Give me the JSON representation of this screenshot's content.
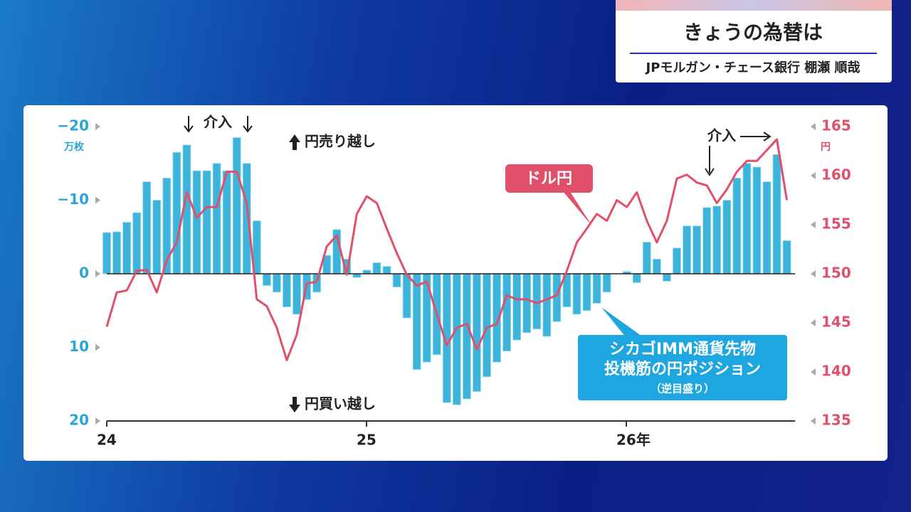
{
  "header": {
    "title": "きょうの為替は",
    "subtitle": "JPモルガン・チェース銀行 棚瀬 順哉"
  },
  "chart_data": {
    "type": "combo",
    "y_unit": "万枚",
    "y2_unit": "円",
    "annotations": [
      "介入",
      "介入",
      "円売り越し",
      "円買い越し",
      "シカゴIMM通貨先物",
      "（逆目盛り）"
    ],
    "x": [
      24,
      24.0385,
      24.077,
      24.1155,
      24.154,
      24.1925,
      24.231,
      24.2695,
      24.308,
      24.3465,
      24.385,
      24.4235,
      24.462,
      24.5005,
      24.539,
      24.5775,
      24.616,
      24.6545,
      24.693,
      24.7315,
      24.77,
      24.8085,
      24.847,
      24.8855,
      24.924,
      24.9625,
      25.001,
      25.0395,
      25.078,
      25.1165,
      25.155,
      25.1935,
      25.232,
      25.2705,
      25.309,
      25.3475,
      25.386,
      25.4245,
      25.463,
      25.5015,
      25.54,
      25.5785,
      25.617,
      25.6555,
      25.694,
      25.7325,
      25.771,
      25.8095,
      25.848,
      25.8865,
      25.925,
      25.9635,
      26.002,
      26.0405,
      26.079,
      26.1175,
      26.156,
      26.1945,
      26.233,
      26.2715,
      26.31,
      26.3485,
      26.387,
      26.4255,
      26.464,
      26.5025,
      26.541,
      26.5795,
      26.618
    ],
    "xlim": [
      24,
      26.65
    ],
    "xticks": [
      24,
      25,
      {
        "value": 26,
        "label": "26年"
      }
    ],
    "ylim": [
      20,
      -20
    ],
    "yticks": [
      {
        "value": -20,
        "label": "−20"
      },
      {
        "value": -10,
        "label": "−10"
      },
      0,
      10,
      20
    ],
    "y2lim": [
      135,
      165
    ],
    "y2ticks": [
      135,
      140,
      145,
      150,
      155,
      160,
      165
    ],
    "series": [
      {
        "name": "投機筋の円ポジション",
        "type": "bar",
        "color": "#3cb4dc",
        "values": [
          -5.6,
          -5.7,
          -7,
          -8.3,
          -12.5,
          -10,
          -13,
          -16.5,
          -17.5,
          -14,
          -14,
          -15,
          -14,
          -18.5,
          -15,
          -7.2,
          1.6,
          2.5,
          4.5,
          5.5,
          3.5,
          2.5,
          -2.5,
          -6,
          -2,
          0.5,
          -0.5,
          -1.5,
          -1,
          1.8,
          6,
          13,
          12,
          11,
          17.5,
          17.8,
          17,
          16,
          14,
          12,
          10.5,
          9,
          8,
          7.5,
          8.5,
          6.5,
          4.5,
          5.5,
          5,
          4,
          2.5,
          0,
          -0.3,
          1.2,
          -4.3,
          -2,
          1,
          -3.5,
          -6.5,
          -6.5,
          -9,
          -9.2,
          -10,
          -13,
          -15,
          -14.5,
          -12.5,
          -16.2,
          -4.5
        ]
      },
      {
        "name": "ドル円",
        "type": "line",
        "axis": "y2",
        "color": "#e0506a",
        "values": [
          144.6,
          148.1,
          148.3,
          150.3,
          150.4,
          148.1,
          151.4,
          153.2,
          158.3,
          155.7,
          156.8,
          156.8,
          160.4,
          160.4,
          157.2,
          147.4,
          146.7,
          144.5,
          141.2,
          143.8,
          149,
          149.2,
          152.8,
          153.9,
          149.9,
          156.1,
          157.9,
          157.2,
          154.6,
          152.1,
          149.9,
          148.8,
          149.2,
          145.9,
          142.7,
          144.5,
          144.9,
          142.3,
          144.5,
          144.9,
          147.8,
          147.4,
          147.4,
          147,
          147.4,
          147.8,
          150.3,
          153.2,
          154.6,
          156.1,
          155.4,
          157.5,
          156.8,
          158.3,
          155.4,
          153.2,
          155.4,
          159.7,
          160.1,
          159.3,
          159,
          157.2,
          158.6,
          160.4,
          161.5,
          161.5,
          162.6,
          163.7,
          157.5
        ]
      }
    ]
  }
}
